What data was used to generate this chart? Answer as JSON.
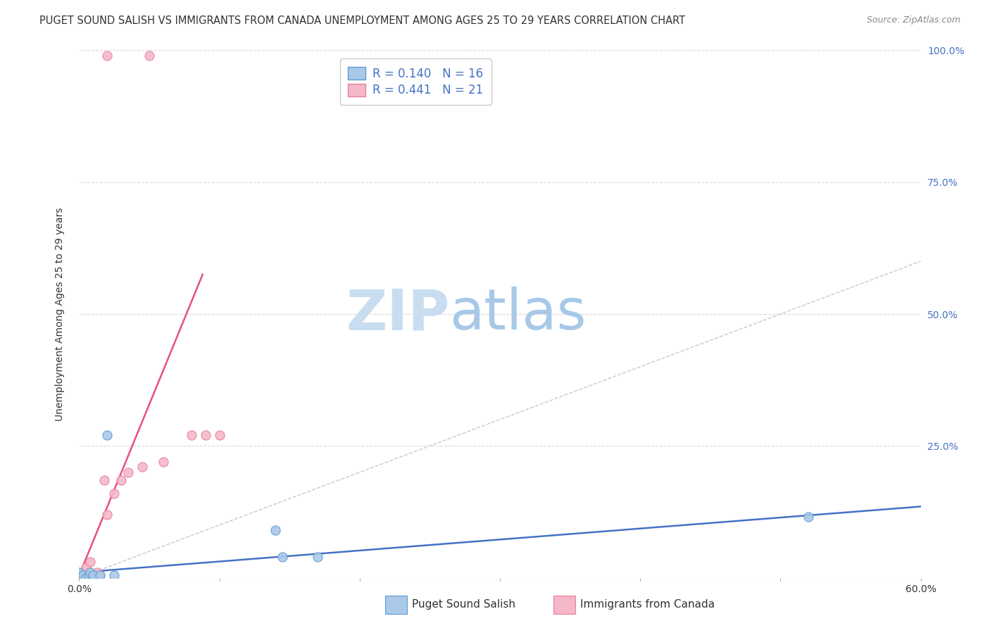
{
  "title": "PUGET SOUND SALISH VS IMMIGRANTS FROM CANADA UNEMPLOYMENT AMONG AGES 25 TO 29 YEARS CORRELATION CHART",
  "source": "Source: ZipAtlas.com",
  "xlabel_edge_labels": [
    "0.0%",
    "60.0%"
  ],
  "ylabel_ticks": [
    0.0,
    0.25,
    0.5,
    0.75,
    1.0
  ],
  "ylabel_labels_right": [
    "",
    "25.0%",
    "50.0%",
    "75.0%",
    "100.0%"
  ],
  "ylabel_label": "Unemployment Among Ages 25 to 29 years",
  "xlim": [
    0.0,
    0.6
  ],
  "ylim": [
    0.0,
    1.0
  ],
  "series1_name": "Puget Sound Salish",
  "series1_color": "#aac9e8",
  "series1_edge_color": "#5b9bd5",
  "series1_R": "0.140",
  "series1_N": "16",
  "series1_x": [
    0.0,
    0.0,
    0.0,
    0.003,
    0.005,
    0.007,
    0.008,
    0.01,
    0.01,
    0.015,
    0.02,
    0.025,
    0.14,
    0.145,
    0.17,
    0.52
  ],
  "series1_y": [
    0.0,
    0.005,
    0.01,
    0.005,
    0.0,
    0.005,
    0.01,
    0.0,
    0.005,
    0.005,
    0.27,
    0.005,
    0.09,
    0.04,
    0.04,
    0.115
  ],
  "series2_name": "Immigrants from Canada",
  "series2_color": "#f4b8c8",
  "series2_edge_color": "#e87fa0",
  "series2_R": "0.441",
  "series2_N": "21",
  "series2_x": [
    0.0,
    0.0,
    0.004,
    0.005,
    0.008,
    0.009,
    0.012,
    0.013,
    0.015,
    0.018,
    0.02,
    0.025,
    0.03,
    0.035,
    0.045,
    0.06,
    0.08,
    0.09,
    0.1,
    0.02,
    0.05
  ],
  "series2_y": [
    0.0,
    0.005,
    0.01,
    0.02,
    0.03,
    0.0,
    0.005,
    0.01,
    0.005,
    0.185,
    0.12,
    0.16,
    0.185,
    0.2,
    0.21,
    0.22,
    0.27,
    0.27,
    0.27,
    0.99,
    0.99
  ],
  "line1_x": [
    0.0,
    0.6
  ],
  "line1_y": [
    0.01,
    0.135
  ],
  "line2_x": [
    0.0,
    0.088
  ],
  "line2_y": [
    0.005,
    0.575
  ],
  "ref_line_color": "#c8c8c8",
  "line1_color": "#4472c4",
  "line2_color": "#e8507a",
  "legend_color": "#4472c4",
  "watermark_zip": "ZIP",
  "watermark_atlas": "atlas",
  "watermark_color_zip": "#c8ddf0",
  "watermark_color_atlas": "#a8c8e8",
  "grid_color": "#d8d8d8",
  "background_color": "#ffffff",
  "title_fontsize": 10.5,
  "axis_label_fontsize": 10,
  "tick_fontsize": 10,
  "marker_size": 90,
  "xtick_minor_positions": [
    0.1,
    0.2,
    0.3,
    0.4,
    0.5
  ]
}
